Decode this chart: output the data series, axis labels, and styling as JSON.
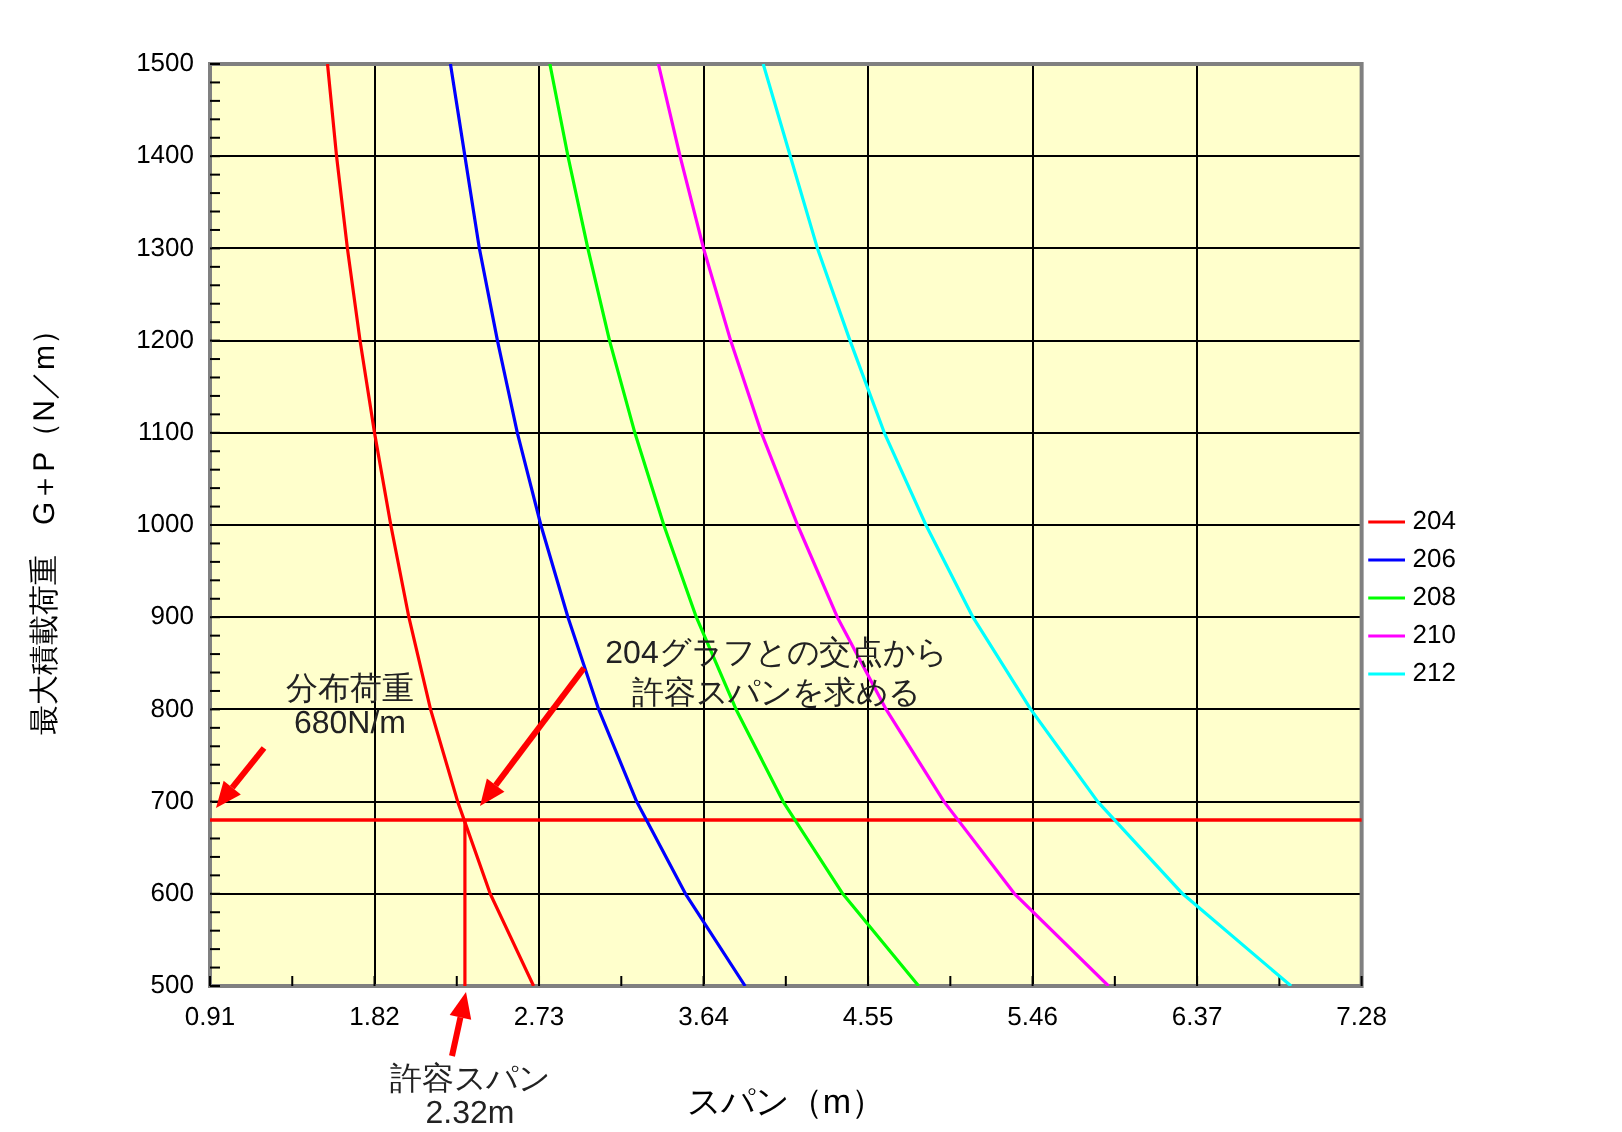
{
  "chart_data": {
    "type": "line",
    "xlabel": "スパン（m）",
    "ylabel": "最大積載荷重　G＋P（N／m）",
    "xlim": [
      0.91,
      7.28
    ],
    "ylim": [
      500,
      1500
    ],
    "xticks": [
      0.91,
      {
        "value": 1.365,
        "label": null
      },
      1.82,
      {
        "value": 2.275,
        "label": null
      },
      2.73,
      {
        "value": 3.185,
        "label": null
      },
      3.64,
      {
        "value": 4.095,
        "label": null
      },
      4.55,
      {
        "value": 5.005,
        "label": null
      },
      5.46,
      {
        "value": 5.915,
        "label": null
      },
      6.37,
      {
        "value": 6.825,
        "label": null
      },
      7.28
    ],
    "yticks": [
      500,
      {
        "value": 520,
        "label": null
      },
      {
        "value": 540,
        "label": null
      },
      {
        "value": 560,
        "label": null
      },
      {
        "value": 580,
        "label": null
      },
      600,
      {
        "value": 620,
        "label": null
      },
      {
        "value": 640,
        "label": null
      },
      {
        "value": 660,
        "label": null
      },
      {
        "value": 680,
        "label": null
      },
      700,
      {
        "value": 720,
        "label": null
      },
      {
        "value": 740,
        "label": null
      },
      {
        "value": 760,
        "label": null
      },
      {
        "value": 780,
        "label": null
      },
      800,
      {
        "value": 820,
        "label": null
      },
      {
        "value": 840,
        "label": null
      },
      {
        "value": 860,
        "label": null
      },
      {
        "value": 880,
        "label": null
      },
      900,
      {
        "value": 920,
        "label": null
      },
      {
        "value": 940,
        "label": null
      },
      {
        "value": 960,
        "label": null
      },
      {
        "value": 980,
        "label": null
      },
      1000,
      {
        "value": 1020,
        "label": null
      },
      {
        "value": 1040,
        "label": null
      },
      {
        "value": 1060,
        "label": null
      },
      {
        "value": 1080,
        "label": null
      },
      1100,
      {
        "value": 1120,
        "label": null
      },
      {
        "value": 1140,
        "label": null
      },
      {
        "value": 1160,
        "label": null
      },
      {
        "value": 1180,
        "label": null
      },
      1200,
      {
        "value": 1220,
        "label": null
      },
      {
        "value": 1240,
        "label": null
      },
      {
        "value": 1260,
        "label": null
      },
      {
        "value": 1280,
        "label": null
      },
      1300,
      {
        "value": 1320,
        "label": null
      },
      {
        "value": 1340,
        "label": null
      },
      {
        "value": 1360,
        "label": null
      },
      {
        "value": 1380,
        "label": null
      },
      1400,
      {
        "value": 1420,
        "label": null
      },
      {
        "value": 1440,
        "label": null
      },
      {
        "value": 1460,
        "label": null
      },
      {
        "value": 1480,
        "label": null
      },
      1500
    ],
    "grid": true,
    "legend": "right",
    "marker": "none",
    "line_style": "solid",
    "series": [
      {
        "name": "204",
        "color": "#ff0000",
        "x": [
          1.56,
          1.61,
          1.67,
          1.74,
          1.82,
          1.91,
          2.01,
          2.13,
          2.28,
          2.46,
          2.7
        ],
        "values": [
          1500,
          1400,
          1300,
          1200,
          1100,
          1000,
          900,
          800,
          700,
          600,
          500
        ]
      },
      {
        "name": "206",
        "color": "#0000ff",
        "x": [
          2.24,
          2.32,
          2.4,
          2.5,
          2.61,
          2.74,
          2.89,
          3.06,
          3.27,
          3.54,
          3.87
        ],
        "values": [
          1500,
          1400,
          1300,
          1200,
          1100,
          1000,
          900,
          800,
          700,
          600,
          500
        ]
      },
      {
        "name": "208",
        "color": "#00ff00",
        "x": [
          2.79,
          2.89,
          3.0,
          3.12,
          3.26,
          3.42,
          3.6,
          3.82,
          4.08,
          4.41,
          4.83
        ],
        "values": [
          1500,
          1400,
          1300,
          1200,
          1100,
          1000,
          900,
          800,
          700,
          600,
          500
        ]
      },
      {
        "name": "210",
        "color": "#ff00ff",
        "x": [
          3.39,
          3.51,
          3.64,
          3.79,
          3.96,
          4.16,
          4.38,
          4.65,
          4.97,
          5.36,
          5.88
        ],
        "values": [
          1500,
          1400,
          1300,
          1200,
          1100,
          1000,
          900,
          800,
          700,
          600,
          500
        ]
      },
      {
        "name": "212",
        "color": "#00ffff",
        "x": [
          3.97,
          4.12,
          4.27,
          4.45,
          4.64,
          4.87,
          5.13,
          5.45,
          5.82,
          6.29,
          6.89
        ],
        "values": [
          1500,
          1400,
          1300,
          1200,
          1100,
          1000,
          900,
          800,
          700,
          600,
          500
        ]
      },
      {
        "color": "#ff0000",
        "x": [
          2.32,
          2.32
        ],
        "values": [
          500,
          680
        ]
      }
    ],
    "ref_lines": [
      {
        "axis": "y",
        "value": 680,
        "color": "#ff0000"
      }
    ],
    "annotations": [
      "分布荷重",
      "680N/m",
      "204グラフとの交点から",
      "許容スパンを求める",
      "許容スパン",
      "2.32m"
    ]
  }
}
